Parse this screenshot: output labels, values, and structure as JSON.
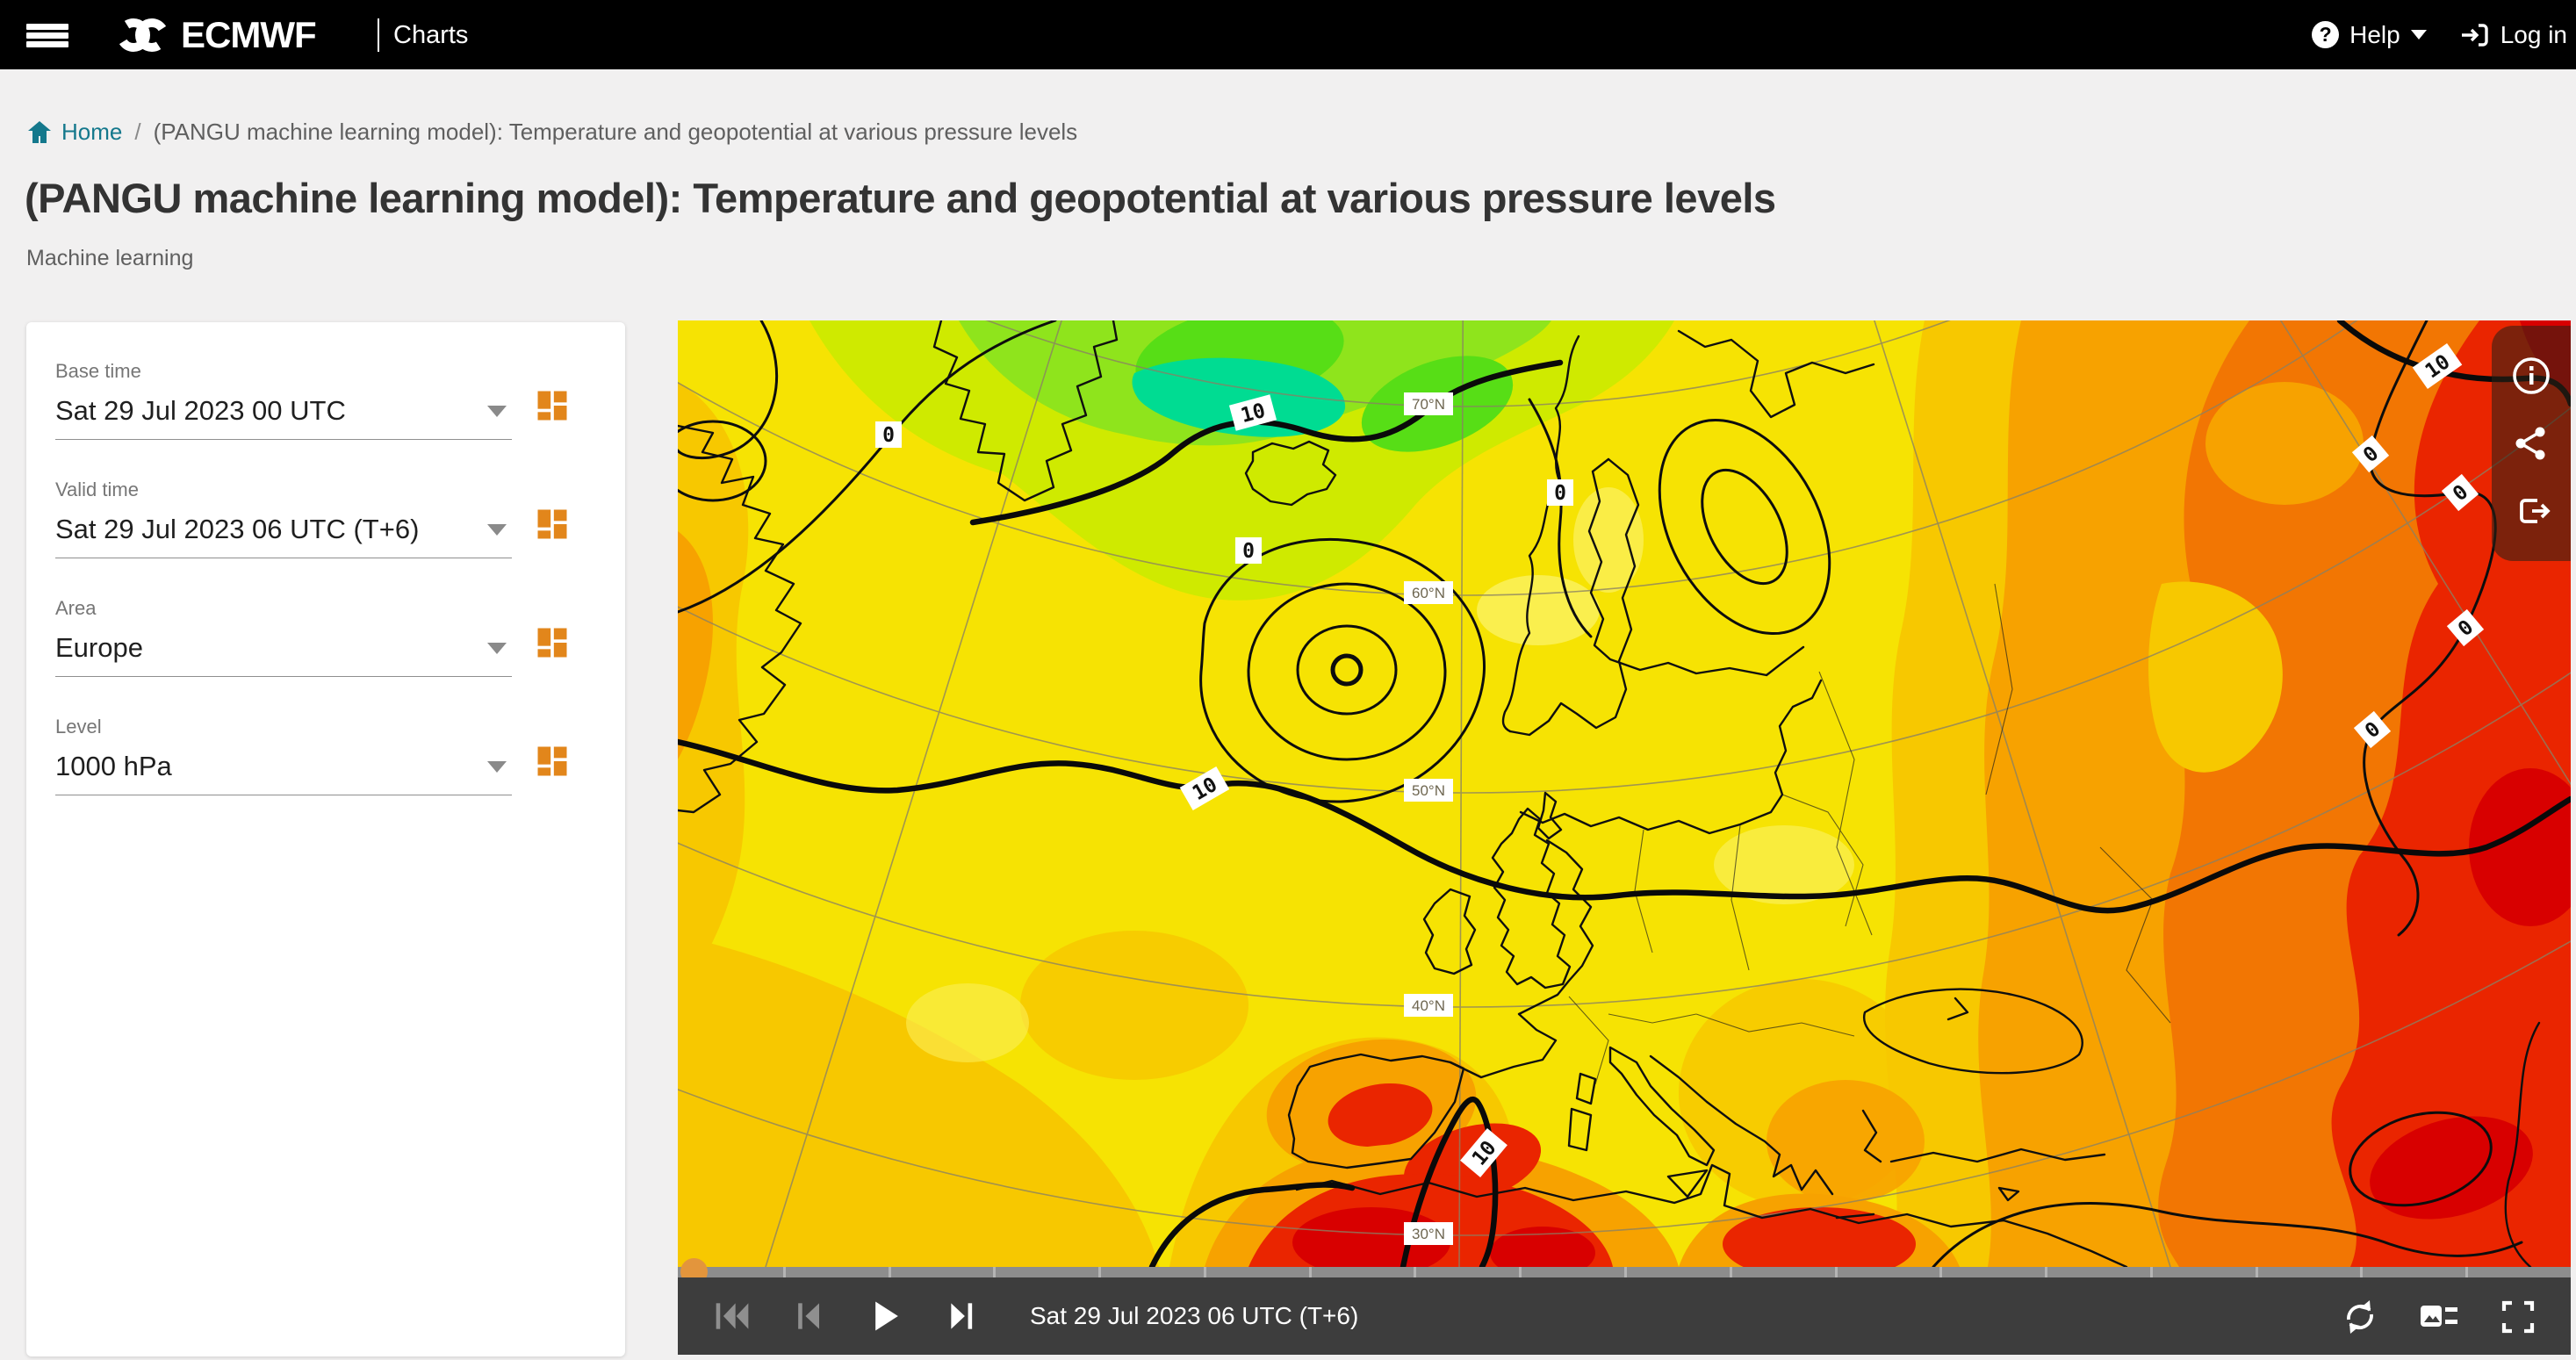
{
  "navbar": {
    "brand": "ECMWF",
    "app_title": "Charts",
    "help_label": "Help",
    "login_label": "Log in"
  },
  "breadcrumb": {
    "home_label": "Home",
    "separator": "/",
    "current_page": "(PANGU machine learning model): Temperature and geopotential at various pressure levels"
  },
  "page": {
    "title": "(PANGU machine learning model): Temperature and geopotential at various pressure levels",
    "subtitle": "Machine learning"
  },
  "controls": {
    "fields": [
      {
        "label": "Base time",
        "value": "Sat 29 Jul 2023 00 UTC"
      },
      {
        "label": "Valid time",
        "value": "Sat 29 Jul 2023 06 UTC (T+6)"
      },
      {
        "label": "Area",
        "value": "Europe"
      },
      {
        "label": "Level",
        "value": "1000 hPa"
      }
    ]
  },
  "map": {
    "latitude_labels": [
      "70°N",
      "60°N",
      "50°N",
      "40°N",
      "30°N"
    ],
    "isotherm_labels": {
      "zero": "0",
      "ten": "10"
    },
    "palette": {
      "teal": "#00DC92",
      "green": "#8FE41C",
      "bright_green": "#57DE16",
      "yellow_green": "#CFEA00",
      "yellow": "#F6E303",
      "gold": "#F7C800",
      "orange": "#F7A200",
      "deep_orange": "#F27603",
      "red": "#EA2500",
      "deep_red": "#D80000"
    }
  },
  "player": {
    "timestamp": "Sat 29 Jul 2023 06 UTC (T+6)",
    "slider": {
      "ticks": 17,
      "position_percent": 0
    }
  },
  "theme": {
    "accent_orange": "#E2861B",
    "link_teal": "#14788C",
    "navbar_bg": "#000000",
    "controlbar_bg": "#3D3D3D"
  }
}
